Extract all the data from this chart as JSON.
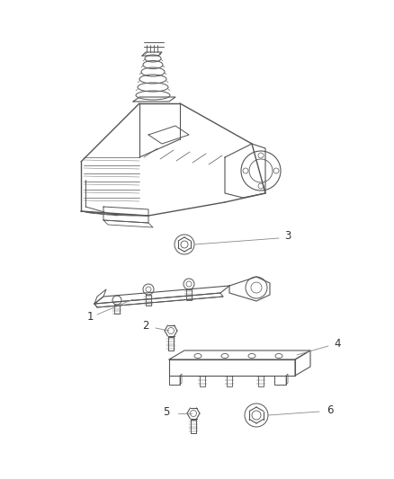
{
  "bg_color": "#ffffff",
  "line_color": "#555555",
  "label_color": "#333333",
  "label_fontsize": 8.5,
  "fig_width": 4.38,
  "fig_height": 5.33,
  "dpi": 100
}
